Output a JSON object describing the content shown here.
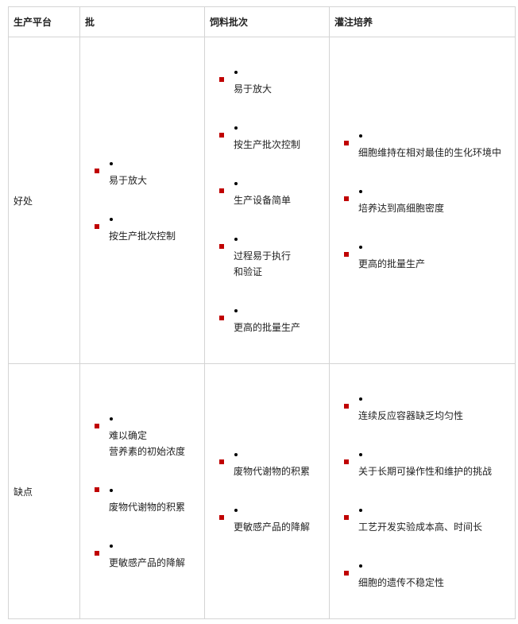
{
  "table": {
    "header": [
      "生产平台",
      "批",
      "饲料批次",
      "灌注培养"
    ],
    "rows": [
      [
        "好处",
        [
          [
            "易于放大"
          ],
          [
            "按生产批次控制"
          ]
        ],
        [
          [
            "易于放大"
          ],
          [
            "按生产批次控制"
          ],
          [
            "生产设备简单"
          ],
          [
            "过程易于执行",
            "和验证"
          ],
          [
            "更高的批量生产"
          ]
        ],
        [
          [
            "细胞维持在相对最佳的生化环境中"
          ],
          [
            "培养达到高细胞密度"
          ],
          [
            "更高的批量生产"
          ]
        ]
      ],
      [
        "缺点",
        [
          [
            "难以确定",
            "营养素的初始浓度"
          ],
          [
            "废物代谢物的积累"
          ],
          [
            "更敏感产品的降解"
          ]
        ],
        [
          [
            "废物代谢物的积累"
          ],
          [
            "更敏感产品的降解"
          ]
        ],
        [
          [
            "连续反应容器缺乏均匀性"
          ],
          [
            "关于长期可操作性和维护的挑战"
          ],
          [
            "工艺开发实验成本高、时间长"
          ],
          [
            "细胞的遗传不稳定性"
          ]
        ]
      ]
    ]
  }
}
